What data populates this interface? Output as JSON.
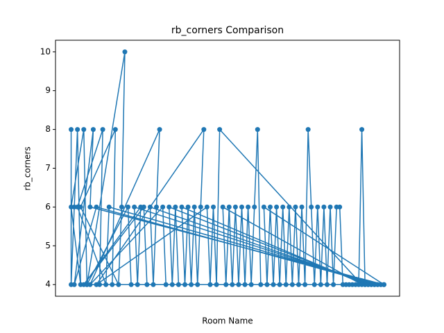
{
  "chart_data": {
    "type": "line",
    "title": "rb_corners Comparison",
    "x_label": "Room Name",
    "y_label": "rb_corners",
    "x": [
      0,
      0,
      1,
      2,
      3,
      0,
      4,
      5,
      99,
      6,
      7,
      1,
      8,
      97,
      9,
      10,
      2,
      11,
      12,
      98,
      13,
      14,
      3,
      15,
      16,
      17,
      5,
      18,
      19,
      96,
      20,
      21,
      22,
      4,
      23,
      24,
      95,
      25,
      26,
      27,
      28,
      6,
      29,
      30,
      94,
      31,
      32,
      33,
      34,
      93,
      35,
      36,
      37,
      38,
      39,
      40,
      41,
      42,
      8,
      43,
      44,
      45,
      46,
      47,
      92,
      48,
      49,
      50,
      51,
      52,
      53,
      54,
      55,
      56,
      57,
      58,
      59,
      60,
      99,
      61,
      62,
      63,
      64,
      65,
      66,
      67,
      68,
      69,
      70,
      71,
      72,
      73,
      74,
      75,
      76,
      77,
      78,
      79,
      80,
      81,
      82,
      83,
      84,
      85,
      86,
      87,
      88,
      89,
      90,
      91,
      92,
      93,
      94,
      95,
      96,
      97,
      98,
      99
    ],
    "series": [
      {
        "color": "#1f77b4",
        "values": [
          8,
          4,
          6,
          8,
          4,
          6,
          8,
          4,
          4,
          6,
          8,
          4,
          6,
          4,
          4,
          8,
          6,
          4,
          6,
          4,
          4,
          8,
          6,
          4,
          6,
          10,
          4,
          6,
          4,
          4,
          6,
          4,
          6,
          4,
          6,
          4,
          4,
          6,
          4,
          6,
          8,
          4,
          6,
          4,
          4,
          6,
          4,
          6,
          4,
          4,
          6,
          4,
          6,
          4,
          6,
          4,
          6,
          8,
          4,
          6,
          4,
          6,
          4,
          8,
          4,
          6,
          4,
          6,
          4,
          6,
          4,
          6,
          4,
          6,
          4,
          6,
          8,
          4,
          4,
          6,
          4,
          6,
          4,
          6,
          4,
          6,
          4,
          6,
          4,
          6,
          4,
          6,
          4,
          8,
          6,
          4,
          6,
          4,
          6,
          4,
          6,
          4,
          6,
          6,
          4,
          4,
          4,
          4,
          4,
          4,
          8,
          4,
          4,
          4,
          4,
          4,
          4,
          4
        ]
      }
    ],
    "xlim": [
      -4.95,
      103.95
    ],
    "ylim": [
      3.7,
      10.3
    ],
    "yticks": [
      4,
      5,
      6,
      7,
      8,
      9,
      10
    ]
  }
}
